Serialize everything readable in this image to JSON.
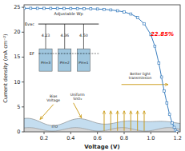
{
  "chart_data": {
    "type": "line",
    "xlabel": "Voltage (V)",
    "ylabel": "Current density (mA cm⁻²)",
    "x": [
      0.05,
      0.1,
      0.15,
      0.2,
      0.25,
      0.3,
      0.35,
      0.4,
      0.45,
      0.5,
      0.55,
      0.6,
      0.65,
      0.7,
      0.75,
      0.8,
      0.85,
      0.9,
      0.95,
      1.0,
      1.03,
      1.06,
      1.08,
      1.1,
      1.12,
      1.14,
      1.16,
      1.175,
      1.185,
      1.195
    ],
    "values": [
      24.8,
      24.8,
      24.79,
      24.79,
      24.78,
      24.78,
      24.77,
      24.76,
      24.75,
      24.73,
      24.7,
      24.65,
      24.58,
      24.47,
      24.3,
      24.05,
      23.65,
      22.95,
      21.7,
      19.5,
      17.2,
      13.8,
      11.0,
      8.2,
      5.8,
      3.5,
      1.8,
      0.9,
      0.3,
      0.05
    ],
    "color": "#3a7ebf",
    "marker": "square",
    "xlim": [
      0.05,
      1.22
    ],
    "ylim": [
      0,
      25.5
    ],
    "xticks": [
      0.2,
      0.4,
      0.6,
      0.8,
      {
        "value": 1.0,
        "label": "1.0"
      },
      1.2
    ],
    "yticks": [
      0,
      5,
      10,
      15,
      20,
      25
    ],
    "annotations": [
      "22.85%",
      "Adjustable Wp",
      "Evac",
      "EF",
      "4.23",
      "4.36",
      "4.50",
      "PH=3",
      "PH=2",
      "PH=1",
      "Bias\nVoltage",
      "Uniform\nSnO₂",
      "Better light\ntransmission",
      "ITO"
    ]
  }
}
